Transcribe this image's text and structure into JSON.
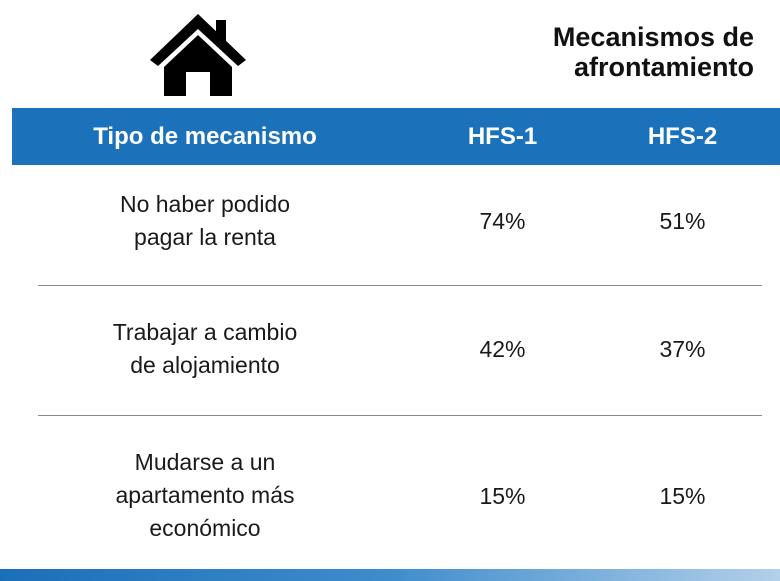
{
  "header": {
    "title_lines": [
      "Mecanismos de",
      "afrontamiento"
    ]
  },
  "table": {
    "columns": [
      "Tipo de mecanismo",
      "HFS-1",
      "HFS-2"
    ],
    "rows": [
      [
        [
          "No haber podido",
          "pagar la renta"
        ],
        "74%",
        "51%"
      ],
      [
        [
          "Trabajar a cambio",
          "de alojamiento"
        ],
        "42%",
        "37%"
      ],
      [
        [
          "Mudarse a un",
          "apartamento más",
          "económico"
        ],
        "15%",
        "15%"
      ]
    ]
  }
}
